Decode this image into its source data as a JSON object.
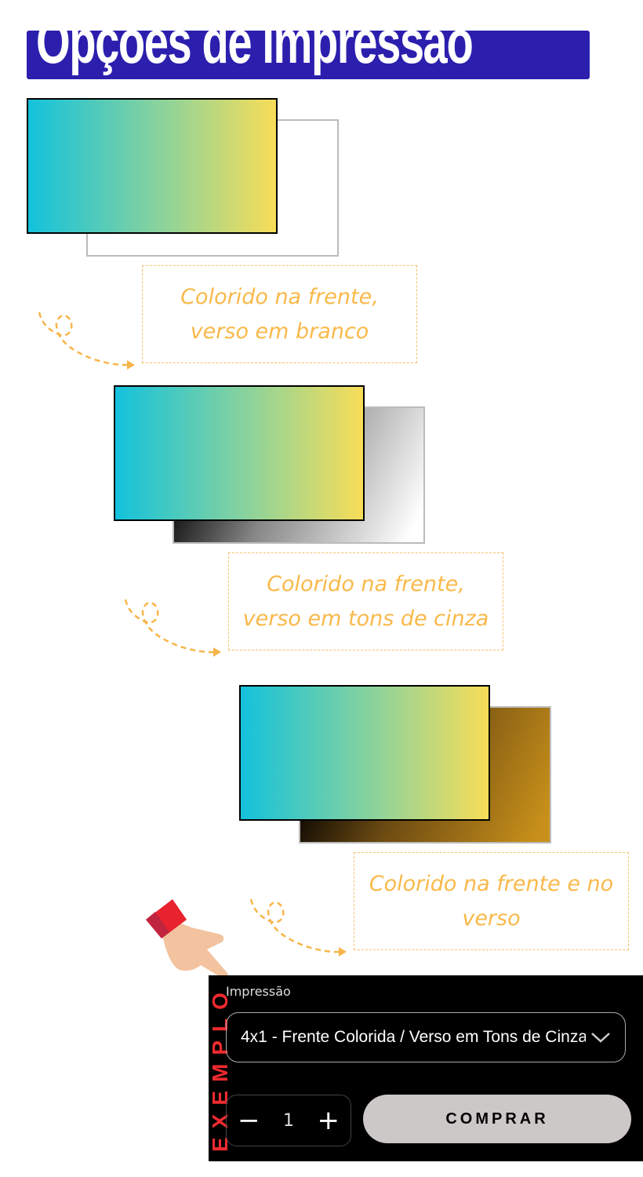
{
  "header": {
    "title": "Opções de Impressão",
    "bar_color": "#2c1fae"
  },
  "options": [
    {
      "caption": "Colorido na frente,\nverso em branco",
      "back_style": "white"
    },
    {
      "caption": "Colorido na frente,\nverso em tons de cinza",
      "back_style": "grayscale"
    },
    {
      "caption": "Colorido na frente e no\nverso",
      "back_style": "color"
    }
  ],
  "example": {
    "side_label": "EXEMPLO",
    "field_label": "Impressão",
    "select_value": "4x1 - Frente Colorida / Verso em Tons de Cinza",
    "quantity": "1",
    "minus_label": "−",
    "plus_label": "+",
    "buy_label": "COMPRAR"
  },
  "colors": {
    "caption": "#f9b94a",
    "accent_red": "#ee2a2f",
    "buy_button": "#cdc8c8"
  }
}
